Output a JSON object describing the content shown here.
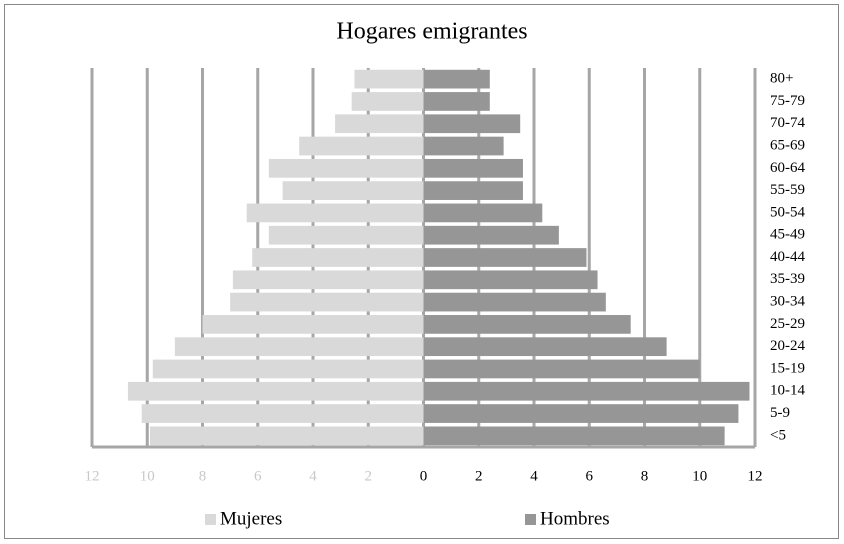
{
  "chart_data": {
    "type": "pyramid",
    "title": "Hogares emigrantes",
    "categories": [
      "80+",
      "75-79",
      "70-74",
      "65-69",
      "60-64",
      "55-59",
      "50-54",
      "45-49",
      "40-44",
      "35-39",
      "30-34",
      "25-29",
      "20-24",
      "15-19",
      "10-14",
      "5-9",
      "<5"
    ],
    "series": [
      {
        "name": "Mujeres",
        "color": "#d9d9d9",
        "side": "left",
        "values": [
          2.5,
          2.6,
          3.2,
          4.5,
          5.6,
          5.1,
          6.4,
          5.6,
          6.2,
          6.9,
          7.0,
          8.0,
          9.0,
          9.8,
          10.7,
          10.2,
          9.9
        ]
      },
      {
        "name": "Hombres",
        "color": "#969696",
        "side": "right",
        "values": [
          2.4,
          2.4,
          3.5,
          2.9,
          3.6,
          3.6,
          4.3,
          4.9,
          5.9,
          6.3,
          6.6,
          7.5,
          8.8,
          10.0,
          11.8,
          11.4,
          10.9
        ]
      }
    ],
    "xlim": [
      -12,
      12
    ],
    "xticks": [
      {
        "value": -12,
        "label": "12"
      },
      {
        "value": -10,
        "label": "10"
      },
      {
        "value": -8,
        "label": "8"
      },
      {
        "value": -6,
        "label": "6"
      },
      {
        "value": -4,
        "label": "4"
      },
      {
        "value": -2,
        "label": "2"
      },
      0,
      2,
      4,
      6,
      8,
      10,
      12
    ],
    "grid": true
  }
}
